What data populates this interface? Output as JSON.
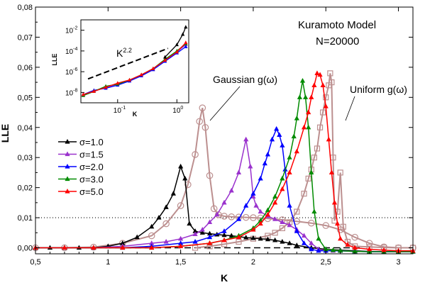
{
  "chart_data": {
    "type": "line",
    "xlabel": "K",
    "ylabel": "LLE",
    "xlim": [
      0.5,
      3.1
    ],
    "ylim": [
      -0.002,
      0.08
    ],
    "x_ticks": [
      "0,5",
      "1",
      "1,5",
      "2",
      "2,5",
      "3"
    ],
    "x_tick_values": [
      0.5,
      1,
      1.5,
      2,
      2.5,
      3
    ],
    "y_ticks": [
      "0,00",
      "0,01",
      "0,02",
      "0,03",
      "0,04",
      "0,05",
      "0,06",
      "0,07",
      "0,08"
    ],
    "y_tick_values": [
      0,
      0.01,
      0.02,
      0.03,
      0.04,
      0.05,
      0.06,
      0.07,
      0.08
    ],
    "reference_lines": [
      {
        "y": 0.01,
        "style": "dotted"
      },
      {
        "y": 0.0,
        "style": "dashed",
        "x_range": [
          0.5,
          2.75
        ]
      }
    ],
    "annotations": {
      "model": "Kuramoto Model",
      "n": "N=20000",
      "gaussian": "Gaussian g(ω)",
      "uniform": "Uniform g(ω)"
    },
    "series": [
      {
        "name": "σ=1.0",
        "color": "#000000",
        "marker": "triangle",
        "x": [
          0.5,
          0.6,
          0.7,
          0.8,
          0.9,
          1.0,
          1.1,
          1.2,
          1.3,
          1.35,
          1.4,
          1.45,
          1.5,
          1.53,
          1.56,
          1.6,
          1.65,
          1.7,
          1.75,
          1.8,
          1.85,
          1.9,
          1.95,
          2.0,
          2.05,
          2.1,
          2.15,
          2.2,
          2.25,
          2.3,
          2.4,
          2.5,
          2.6,
          2.7,
          2.8,
          2.9,
          3.0,
          3.1
        ],
        "y": [
          0,
          0,
          0,
          0,
          0,
          0.0005,
          0.0015,
          0.0035,
          0.007,
          0.01,
          0.0135,
          0.018,
          0.027,
          0.023,
          0.008,
          0.0055,
          0.005,
          0.0047,
          0.0044,
          0.0042,
          0.004,
          0.0037,
          0.0034,
          0.0032,
          0.003,
          0.0028,
          0.0025,
          0.002,
          0.0015,
          0.0008,
          0,
          -0.0005,
          -0.0008,
          -0.001,
          -0.0012,
          -0.0013,
          -0.0013,
          -0.0013
        ]
      },
      {
        "name": "σ=1.5",
        "color": "#9a32cd",
        "marker": "triangle",
        "x": [
          0.5,
          0.7,
          0.9,
          1.1,
          1.3,
          1.4,
          1.5,
          1.6,
          1.65,
          1.7,
          1.75,
          1.8,
          1.85,
          1.9,
          1.95,
          1.98,
          2.0,
          2.02,
          2.05,
          2.1,
          2.15,
          2.2,
          2.25,
          2.3,
          2.35,
          2.4,
          2.45,
          2.5,
          2.55,
          2.6,
          2.7,
          2.8,
          2.9,
          3.0,
          3.1
        ],
        "y": [
          0,
          0,
          0,
          0.0005,
          0.0015,
          0.002,
          0.003,
          0.0045,
          0.006,
          0.0085,
          0.011,
          0.015,
          0.019,
          0.025,
          0.036,
          0.027,
          0.017,
          0.014,
          0.012,
          0.0105,
          0.0095,
          0.0085,
          0.0075,
          0.006,
          0.004,
          0.0015,
          -0.0005,
          -0.001,
          -0.001,
          -0.001,
          -0.0012,
          -0.0013,
          -0.0013,
          -0.0013,
          -0.0013
        ]
      },
      {
        "name": "σ=2.0",
        "color": "#0000ff",
        "marker": "triangle",
        "x": [
          0.5,
          0.7,
          0.9,
          1.1,
          1.3,
          1.5,
          1.6,
          1.7,
          1.8,
          1.9,
          1.95,
          2.0,
          2.05,
          2.08,
          2.1,
          2.13,
          2.16,
          2.18,
          2.2,
          2.22,
          2.25,
          2.3,
          2.35,
          2.4,
          2.45,
          2.5,
          2.6,
          2.7,
          2.8,
          2.9,
          3.0,
          3.1
        ],
        "y": [
          0,
          0,
          0,
          0,
          0.0005,
          0.0015,
          0.002,
          0.0035,
          0.0055,
          0.0095,
          0.014,
          0.018,
          0.023,
          0.028,
          0.031,
          0.036,
          0.0395,
          0.0375,
          0.034,
          0.026,
          0.014,
          0.0055,
          0.0015,
          -0.0005,
          -0.001,
          -0.001,
          -0.001,
          -0.0012,
          -0.0013,
          -0.0013,
          -0.0013,
          -0.0013
        ]
      },
      {
        "name": "σ=3.0",
        "color": "#008b00",
        "marker": "triangle",
        "x": [
          0.5,
          0.7,
          0.9,
          1.1,
          1.3,
          1.5,
          1.7,
          1.8,
          1.9,
          2.0,
          2.05,
          2.1,
          2.15,
          2.2,
          2.25,
          2.28,
          2.3,
          2.32,
          2.34,
          2.36,
          2.38,
          2.4,
          2.42,
          2.45,
          2.5,
          2.55,
          2.6,
          2.7,
          2.8,
          2.9,
          3.0,
          3.1
        ],
        "y": [
          0,
          0,
          0,
          0,
          0,
          0.0005,
          0.0015,
          0.0025,
          0.004,
          0.0065,
          0.009,
          0.0125,
          0.017,
          0.023,
          0.03,
          0.037,
          0.043,
          0.05,
          0.0555,
          0.05,
          0.04,
          0.025,
          0.012,
          0.003,
          -0.0005,
          -0.0008,
          -0.001,
          -0.0012,
          -0.0013,
          -0.0013,
          -0.0013,
          -0.0013
        ]
      },
      {
        "name": "σ=5.0",
        "color": "#ff0000",
        "marker": "triangle",
        "x": [
          0.5,
          0.7,
          0.9,
          1.1,
          1.3,
          1.5,
          1.7,
          1.8,
          1.9,
          2.0,
          2.05,
          2.1,
          2.15,
          2.2,
          2.25,
          2.3,
          2.35,
          2.38,
          2.4,
          2.42,
          2.44,
          2.46,
          2.48,
          2.5,
          2.52,
          2.54,
          2.56,
          2.58,
          2.6,
          2.65,
          2.7,
          2.8,
          2.9,
          3.0,
          3.1
        ],
        "y": [
          0,
          0,
          0,
          0,
          0,
          0.0005,
          0.0015,
          0.0025,
          0.0035,
          0.006,
          0.008,
          0.011,
          0.015,
          0.0195,
          0.025,
          0.032,
          0.04,
          0.045,
          0.05,
          0.054,
          0.058,
          0.0575,
          0.054,
          0.047,
          0.036,
          0.025,
          0.015,
          0.008,
          0.003,
          0.001,
          0,
          -0.0005,
          -0.0008,
          -0.001,
          -0.001
        ]
      }
    ],
    "extra_series": [
      {
        "name": "Gaussian g(ω)",
        "color": "#bc8f8f",
        "marker": "circle",
        "x": [
          0.5,
          0.7,
          0.9,
          1.1,
          1.3,
          1.4,
          1.5,
          1.55,
          1.6,
          1.63,
          1.65,
          1.67,
          1.7,
          1.73,
          1.76,
          1.8,
          1.85,
          1.9,
          1.95,
          2.0,
          2.05,
          2.1,
          2.2,
          2.3,
          2.4,
          2.5,
          2.6,
          2.7,
          2.8,
          2.9,
          3.0,
          3.1
        ],
        "y": [
          0,
          0,
          0.0002,
          0.0015,
          0.004,
          0.008,
          0.014,
          0.021,
          0.031,
          0.042,
          0.0465,
          0.04,
          0.024,
          0.013,
          0.011,
          0.0105,
          0.0103,
          0.0102,
          0.0101,
          0.01,
          0.0099,
          0.0097,
          0.0093,
          0.0088,
          0.0082,
          0.0074,
          0.006,
          0.0035,
          0.0015,
          0.0003,
          0,
          0
        ]
      },
      {
        "name": "Uniform g(ω)",
        "color": "#bc8f8f",
        "marker": "square",
        "x": [
          1.6,
          1.7,
          1.8,
          1.9,
          2.0,
          2.1,
          2.15,
          2.2,
          2.25,
          2.3,
          2.35,
          2.38,
          2.4,
          2.42,
          2.44,
          2.46,
          2.48,
          2.5,
          2.52,
          2.53,
          2.54,
          2.55,
          2.56,
          2.58,
          2.6,
          2.62,
          2.65,
          2.7,
          2.8,
          2.9,
          3.0,
          3.1
        ],
        "y": [
          0,
          0.0005,
          0.0012,
          0.002,
          0.003,
          0.004,
          0.005,
          0.0065,
          0.0085,
          0.012,
          0.018,
          0.023,
          0.026,
          0.03,
          0.033,
          0.04,
          0.045,
          0.05,
          0.054,
          0.058,
          0.055,
          0.03,
          0.009,
          0.012,
          0.025,
          0.007,
          0.002,
          0.0005,
          0.0003,
          0.0001,
          0,
          0
        ]
      }
    ],
    "inset": {
      "xlabel": "K",
      "ylabel": "LLE",
      "x_ticks": [
        "10",
        "10"
      ],
      "x_tick_exps": [
        "-1",
        "0"
      ],
      "y_ticks": [
        "10",
        "10",
        "10",
        "10"
      ],
      "y_tick_exps": [
        "-2",
        "-4",
        "-6",
        "-8"
      ],
      "scale": "log-log",
      "trend_label": "K",
      "trend_exp": "2.2"
    }
  }
}
